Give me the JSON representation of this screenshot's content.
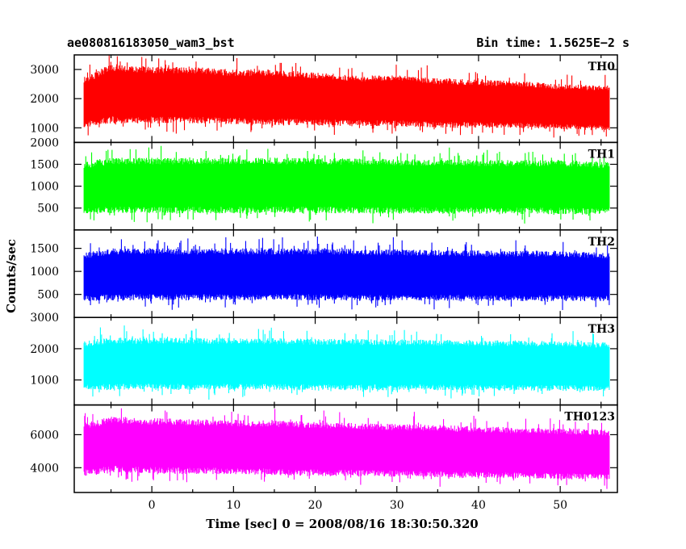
{
  "header": {
    "left": "ae080816183050_wam3_bst",
    "right": "Bin time: 1.5625E−2 s"
  },
  "chart_data": {
    "type": "line",
    "title": "ae080816183050_wam3_bst",
    "subtitle": "Bin time: 1.5625E−2 s",
    "xlabel": "Time [sec] 0 = 2008/08/16 18:30:50.320",
    "ylabel": "Counts/sec",
    "xlim": [
      -9.5,
      57
    ],
    "data_x_range": [
      -8.3,
      56
    ],
    "x_ticks": [
      0,
      10,
      20,
      30,
      40,
      50
    ],
    "grid": false,
    "legend": "none",
    "panels": [
      {
        "name": "TH0",
        "color": "#ff0000",
        "ylim": [
          500,
          3500
        ],
        "y_ticks": [
          1000,
          2000,
          3000
        ],
        "x": [
          -8.3,
          -5,
          0,
          5,
          10,
          15,
          20,
          25,
          30,
          35,
          40,
          45,
          50,
          56
        ],
        "mean": [
          1800,
          2000,
          1950,
          1950,
          1900,
          1850,
          1800,
          1780,
          1750,
          1700,
          1680,
          1650,
          1600,
          1550
        ],
        "low": [
          1000,
          1150,
          1150,
          1150,
          1120,
          1100,
          1080,
          1060,
          1050,
          1000,
          1000,
          980,
          950,
          900
        ],
        "high": [
          2700,
          3200,
          3100,
          3100,
          3000,
          3000,
          2900,
          2800,
          2800,
          2700,
          2650,
          2600,
          2500,
          2450
        ]
      },
      {
        "name": "TH1",
        "color": "#00ff00",
        "ylim": [
          0,
          2000
        ],
        "y_ticks": [
          500,
          1000,
          1500,
          2000
        ],
        "x": [
          -8.3,
          -5,
          0,
          10,
          20,
          30,
          40,
          50,
          56
        ],
        "mean": [
          900,
          950,
          950,
          950,
          950,
          940,
          930,
          920,
          900
        ],
        "low": [
          350,
          380,
          380,
          380,
          380,
          370,
          370,
          360,
          350
        ],
        "high": [
          1550,
          1650,
          1650,
          1650,
          1650,
          1620,
          1600,
          1600,
          1550
        ]
      },
      {
        "name": "TH2",
        "color": "#0000ff",
        "ylim": [
          0,
          1900
        ],
        "y_ticks": [
          500,
          1000,
          1500
        ],
        "x": [
          -8.3,
          -5,
          0,
          10,
          20,
          30,
          40,
          50,
          56
        ],
        "mean": [
          850,
          880,
          880,
          880,
          880,
          870,
          860,
          850,
          840
        ],
        "low": [
          350,
          370,
          370,
          370,
          370,
          360,
          360,
          350,
          350
        ],
        "high": [
          1400,
          1500,
          1500,
          1500,
          1500,
          1480,
          1450,
          1450,
          1400
        ]
      },
      {
        "name": "TH3",
        "color": "#00ffff",
        "ylim": [
          200,
          3000
        ],
        "y_ticks": [
          1000,
          2000,
          3000
        ],
        "x": [
          -8.3,
          -5,
          0,
          10,
          20,
          30,
          40,
          50,
          56
        ],
        "mean": [
          1400,
          1450,
          1450,
          1450,
          1430,
          1420,
          1410,
          1400,
          1380
        ],
        "low": [
          650,
          680,
          680,
          680,
          670,
          660,
          660,
          650,
          640
        ],
        "high": [
          2250,
          2350,
          2350,
          2350,
          2320,
          2300,
          2280,
          2250,
          2200
        ]
      },
      {
        "name": "TH0123",
        "color": "#ff00ff",
        "ylim": [
          2500,
          7800
        ],
        "y_ticks": [
          4000,
          6000
        ],
        "x": [
          -8.3,
          -5,
          0,
          5,
          10,
          15,
          20,
          25,
          30,
          35,
          40,
          45,
          50,
          56
        ],
        "mean": [
          5100,
          5300,
          5250,
          5200,
          5150,
          5100,
          5050,
          5000,
          4950,
          4900,
          4850,
          4800,
          4750,
          4700
        ],
        "low": [
          3500,
          3700,
          3650,
          3600,
          3600,
          3550,
          3500,
          3500,
          3450,
          3400,
          3380,
          3350,
          3300,
          3250
        ],
        "high": [
          6700,
          7100,
          7000,
          6950,
          6900,
          6850,
          6800,
          6700,
          6650,
          6600,
          6500,
          6450,
          6400,
          6300
        ]
      }
    ]
  }
}
